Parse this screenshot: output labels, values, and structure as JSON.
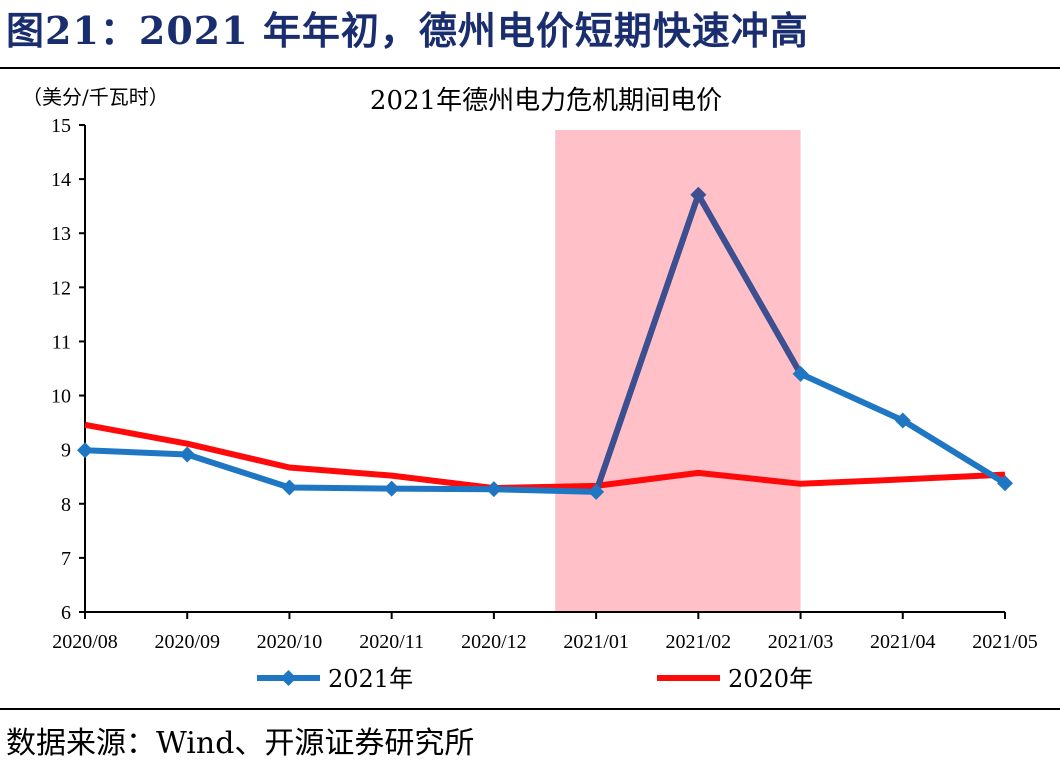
{
  "figure": {
    "title": "图21：2021 年年初，德州电价短期快速冲高",
    "source": "数据来源：Wind、开源证券研究所"
  },
  "chart_data": {
    "type": "line",
    "title": "2021年德州电力危机期间电价",
    "ylabel": "（美分/千瓦时）",
    "xlabel": "",
    "ylim": [
      6,
      15
    ],
    "yticks": [
      6,
      7,
      8,
      9,
      10,
      11,
      12,
      13,
      14,
      15
    ],
    "categories": [
      "2020/08",
      "2020/09",
      "2020/10",
      "2020/11",
      "2020/12",
      "2021/01",
      "2021/02",
      "2021/03",
      "2021/04",
      "2021/05"
    ],
    "highlight": {
      "from_x": 4.6,
      "to_x": 7.0,
      "color": "#ffc0c8"
    },
    "series": [
      {
        "name": "2021年",
        "color": "#1f77c4",
        "marker": "diamond",
        "values": [
          8.99,
          8.91,
          8.3,
          8.28,
          8.27,
          8.22,
          13.71,
          10.4,
          9.54,
          8.38
        ],
        "highlight_segment": {
          "from": 5,
          "to": 7,
          "color": "#3d4f8f"
        }
      },
      {
        "name": "2020年",
        "color": "#ff0a0a",
        "marker": "none",
        "values": [
          9.46,
          9.11,
          8.67,
          8.52,
          8.29,
          8.33,
          8.57,
          8.37,
          8.45,
          8.54
        ]
      }
    ],
    "grid": false,
    "legend_position": "bottom"
  }
}
